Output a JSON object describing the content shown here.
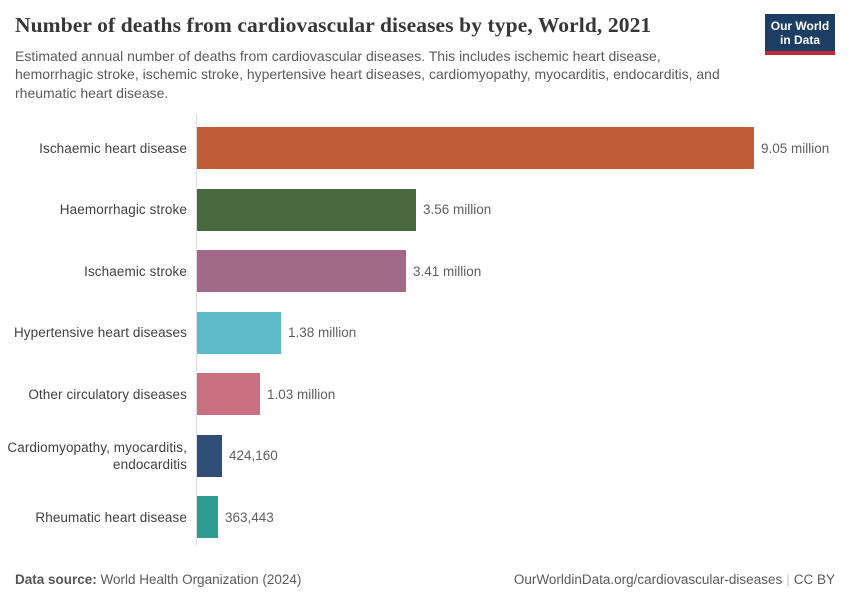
{
  "header": {
    "title": "Number of deaths from cardiovascular diseases by type, World, 2021",
    "subtitle": "Estimated annual number of deaths from cardiovascular diseases. This includes ischemic heart disease, hemorrhagic stroke, ischemic stroke, hypertensive heart diseases, cardiomyopathy, myocarditis, endocarditis, and rheumatic heart disease."
  },
  "logo": {
    "line1": "Our World",
    "line2": "in Data",
    "background": "#1d3d63",
    "accent": "#c0293b"
  },
  "chart_data": {
    "type": "bar",
    "orientation": "horizontal",
    "title": "Number of deaths from cardiovascular diseases by type, World, 2021",
    "year": "2021",
    "entity": "World",
    "categories": [
      "Ischaemic heart disease",
      "Haemorrhagic stroke",
      "Ischaemic stroke",
      "Hypertensive heart diseases",
      "Other circulatory diseases",
      "Cardiomyopathy, myocarditis, endocarditis",
      "Rheumatic heart disease"
    ],
    "values": [
      9050000,
      3560000,
      3410000,
      1380000,
      1030000,
      424160,
      363443
    ],
    "value_labels": [
      "9.05 million",
      "3.56 million",
      "3.41 million",
      "1.38 million",
      "1.03 million",
      "424,160",
      "363,443"
    ],
    "colors": [
      "#c15c38",
      "#47693d",
      "#a26a89",
      "#5dbac7",
      "#cb7080",
      "#2f4f79",
      "#2f9c92"
    ],
    "xlim": [
      0,
      9050000
    ],
    "grid": false,
    "legend": "none",
    "axis_color": "#dcdcdc"
  },
  "footer": {
    "data_source_label": "Data source:",
    "data_source_value": " World Health Organization (2024)",
    "url": "OurWorldinData.org/cardiovascular-diseases",
    "separator": "|",
    "license": "CC BY"
  }
}
